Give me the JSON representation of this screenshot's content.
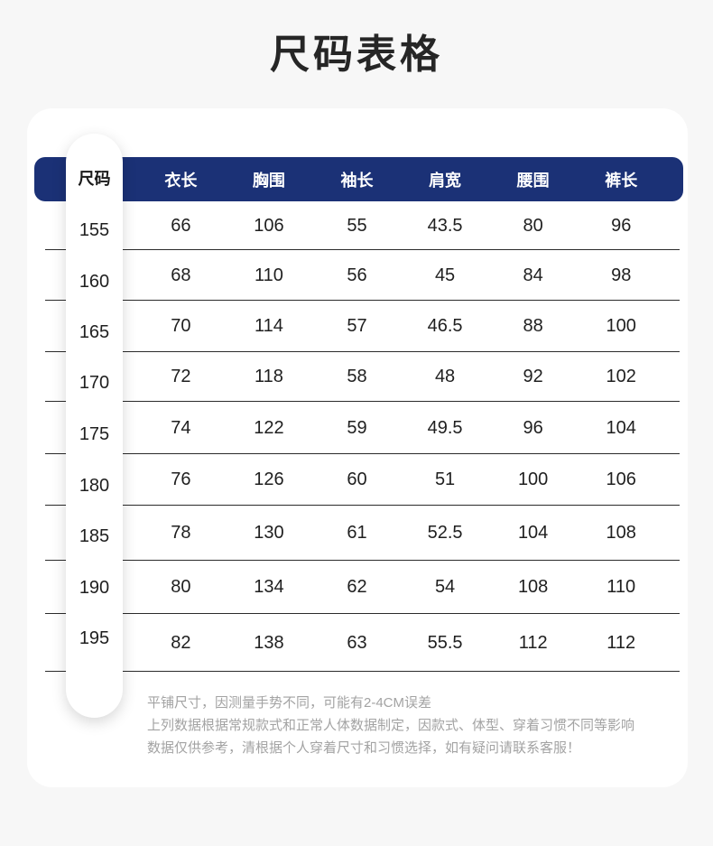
{
  "page": {
    "title": "尺码表格"
  },
  "size_chart": {
    "header": {
      "size_col": "尺码",
      "columns": [
        "衣长",
        "胸围",
        "袖长",
        "肩宽",
        "腰围",
        "裤长"
      ]
    },
    "rows": [
      {
        "size": "155",
        "values": [
          "66",
          "106",
          "55",
          "43.5",
          "80",
          "96"
        ]
      },
      {
        "size": "160",
        "values": [
          "68",
          "110",
          "56",
          "45",
          "84",
          "98"
        ]
      },
      {
        "size": "165",
        "values": [
          "70",
          "114",
          "57",
          "46.5",
          "88",
          "100"
        ]
      },
      {
        "size": "170",
        "values": [
          "72",
          "118",
          "58",
          "48",
          "92",
          "102"
        ]
      },
      {
        "size": "175",
        "values": [
          "74",
          "122",
          "59",
          "49.5",
          "96",
          "104"
        ]
      },
      {
        "size": "180",
        "values": [
          "76",
          "126",
          "60",
          "51",
          "100",
          "106"
        ]
      },
      {
        "size": "185",
        "values": [
          "78",
          "130",
          "61",
          "52.5",
          "104",
          "108"
        ]
      },
      {
        "size": "190",
        "values": [
          "80",
          "134",
          "62",
          "54",
          "108",
          "110"
        ]
      },
      {
        "size": "195",
        "values": [
          "82",
          "138",
          "63",
          "55.5",
          "112",
          "112"
        ]
      }
    ],
    "notes": [
      "平铺尺寸，因测量手势不同，可能有2-4CM误差",
      "上列数据根据常规款式和正常人体数据制定，因款式、体型、穿着习惯不同等影响",
      "数据仅供参考，清根据个人穿着尺寸和习惯选择，如有疑问请联系客服！"
    ],
    "colors": {
      "header_bg": "#1b3176",
      "header_text": "#ffffff",
      "page_bg": "#f7f7f7",
      "note_text": "#a3a3a3"
    }
  }
}
